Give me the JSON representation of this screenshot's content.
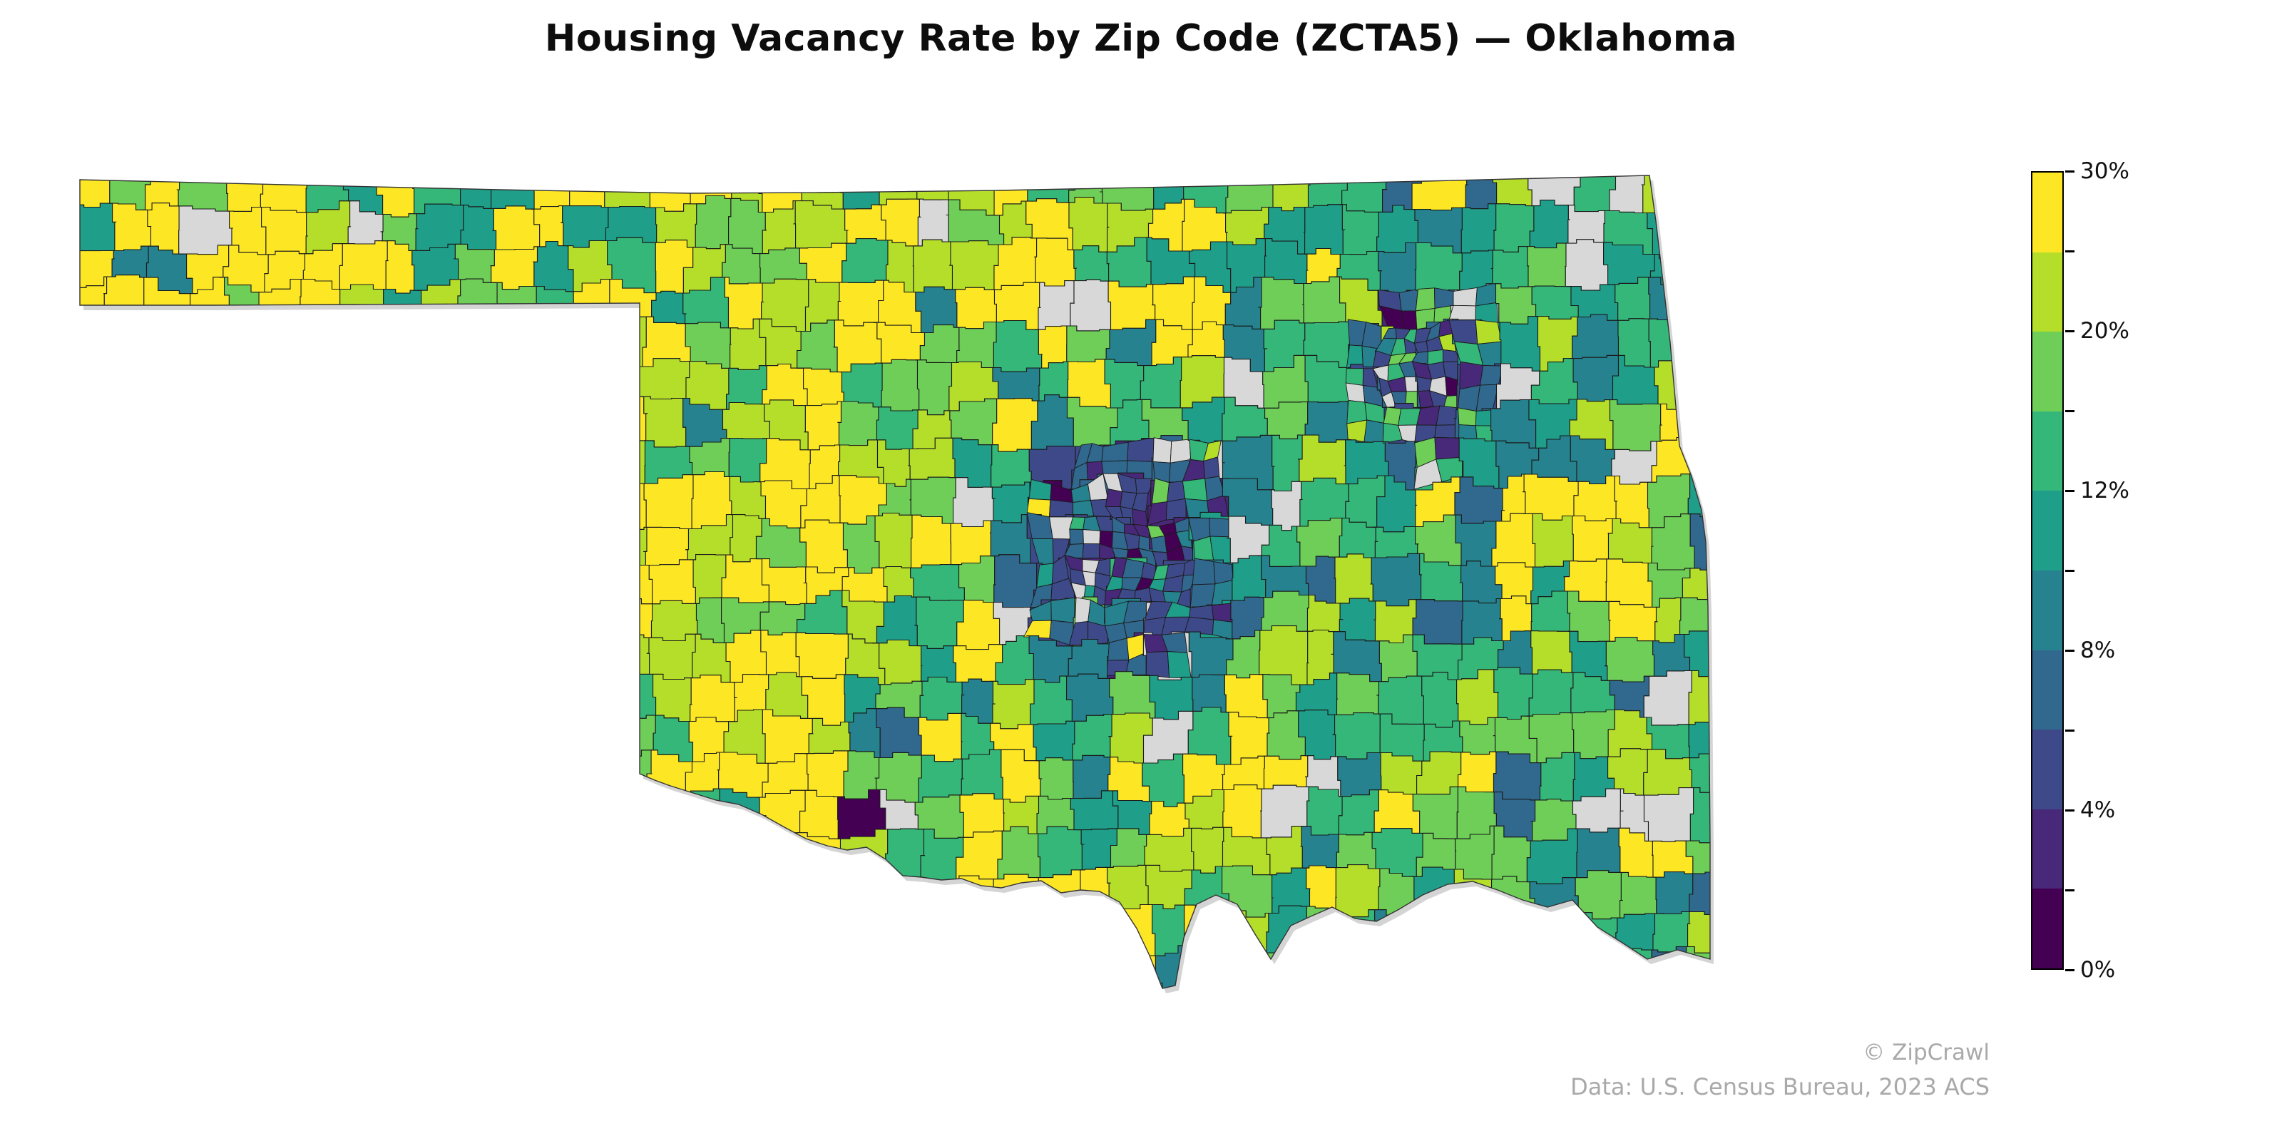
{
  "title": "Housing Vacancy Rate by Zip Code (ZCTA5) — Oklahoma",
  "footer": {
    "credit": "© ZipCrawl",
    "source": "Data: U.S. Census Bureau, 2023 ACS"
  },
  "colorbar": {
    "boundaries_pct": [
      0,
      2,
      4,
      6,
      8,
      10,
      12,
      16,
      20,
      25,
      30
    ],
    "labeled_ticks": [
      {
        "value": 30,
        "label": "30%"
      },
      {
        "value": 20,
        "label": "20%"
      },
      {
        "value": 12,
        "label": "12%"
      },
      {
        "value": 8,
        "label": "8%"
      },
      {
        "value": 4,
        "label": "4%"
      },
      {
        "value": 0,
        "label": "0%"
      }
    ]
  },
  "chart_data": {
    "type": "choropleth",
    "title": "Housing Vacancy Rate by Zip Code (ZCTA5) — Oklahoma",
    "geography": "Oklahoma, United States — ZCTA5 zip code tabulation areas",
    "metric": "Housing vacancy rate (%)",
    "legend_position": "right vertical colorbar",
    "color_scale": {
      "palette": "viridis",
      "style": "discrete bands",
      "boundaries_pct": [
        0,
        2,
        4,
        6,
        8,
        10,
        12,
        16,
        20,
        25,
        30
      ],
      "band_colors_low_to_high": [
        "#440154",
        "#482878",
        "#3e4989",
        "#31688e",
        "#26828e",
        "#1f9e89",
        "#35b779",
        "#6ece58",
        "#b5de2b",
        "#fde725"
      ],
      "no_data_color": "#d8d8d8",
      "labeled_ticks": [
        "0%",
        "4%",
        "8%",
        "12%",
        "20%",
        "30%"
      ],
      "range_pct": [
        0,
        30
      ]
    },
    "spatial_patterns": [
      "Panhandle and far-western zip codes mostly 20-30% vacancy (yellow / yellow-green)",
      "Oklahoma City metro: dense cluster of very low vacancy 0-8% (dark purple, indigo, blue) with many tiny urban ZCTAs and a few gray no-data polygons",
      "Tulsa metro (northeast): second cluster of low vacancy 0-8% (dark blue / indigo)",
      "Rural north-central and northeast: mix of 10-20% (teal and green)",
      "Southeast and east-central: greens 12-25% with scattered yellow pockets and gray lake/no-data polygons",
      "Southwest and south-central: heavy yellow 20-30% with green patches",
      "Gray polygons = no data (lakes, military lands)"
    ]
  }
}
